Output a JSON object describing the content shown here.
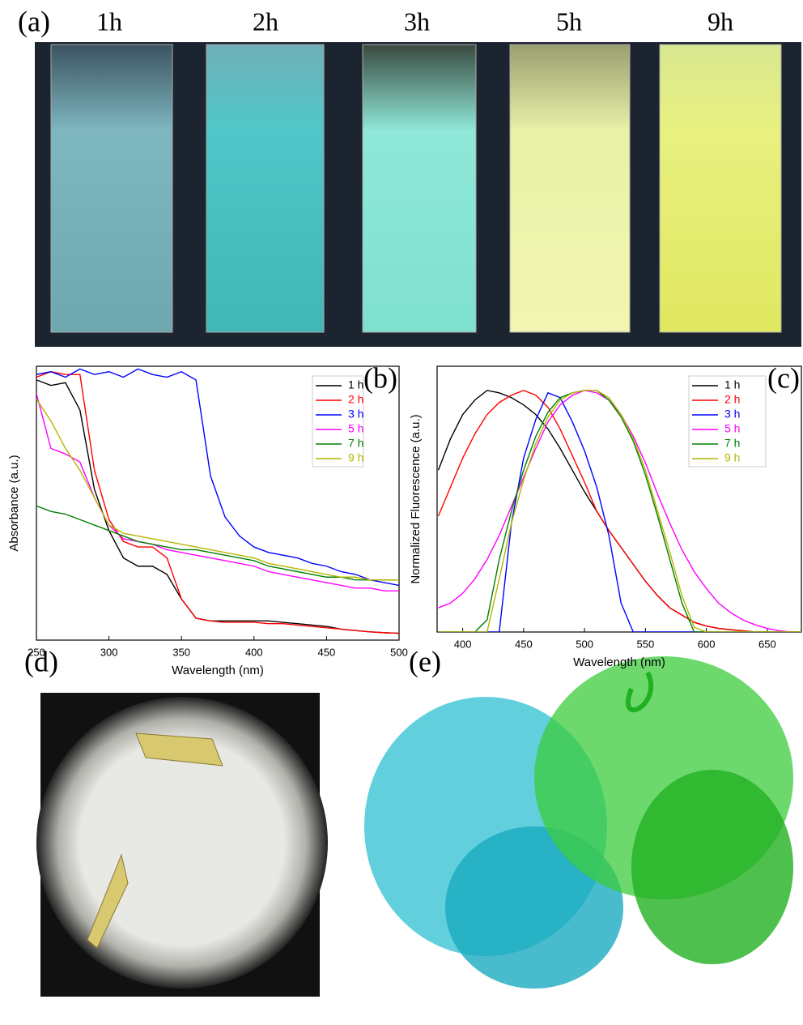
{
  "panel_labels": [
    "(a)",
    "(d)",
    "(e)"
  ],
  "photo_captions": [
    "1h",
    "2h",
    "3h",
    "5h",
    "9h"
  ],
  "chart_data": [
    {
      "type": "line",
      "panel_label": "(b)",
      "x_label": "Wavelength (nm)",
      "y_label": "Absorbance (a.u.)",
      "xlim": [
        250,
        500
      ],
      "ylim": [
        0,
        1
      ],
      "xticks": [
        250,
        300,
        350,
        400,
        450,
        500
      ],
      "legend": "upper right",
      "x": [
        250,
        260,
        270,
        280,
        290,
        300,
        310,
        320,
        330,
        340,
        350,
        360,
        370,
        380,
        390,
        400,
        410,
        420,
        430,
        440,
        450,
        460,
        470,
        480,
        490,
        500
      ],
      "series": [
        {
          "name": "1 h",
          "color": "#000000",
          "values": [
            0.95,
            0.93,
            0.94,
            0.84,
            0.55,
            0.4,
            0.3,
            0.27,
            0.27,
            0.24,
            0.15,
            0.08,
            0.07,
            0.07,
            0.07,
            0.07,
            0.07,
            0.065,
            0.06,
            0.055,
            0.05,
            0.04,
            0.035,
            0.03,
            0.027,
            0.025
          ]
        },
        {
          "name": "2 h",
          "color": "#ff0000",
          "values": [
            0.96,
            0.98,
            0.97,
            0.97,
            0.62,
            0.44,
            0.36,
            0.34,
            0.34,
            0.3,
            0.15,
            0.08,
            0.07,
            0.065,
            0.065,
            0.065,
            0.06,
            0.06,
            0.055,
            0.05,
            0.045,
            0.04,
            0.035,
            0.03,
            0.027,
            0.025
          ]
        },
        {
          "name": "3 h",
          "color": "#0000ff",
          "values": [
            0.97,
            0.98,
            0.96,
            0.99,
            0.97,
            0.98,
            0.96,
            0.99,
            0.97,
            0.96,
            0.98,
            0.95,
            0.6,
            0.45,
            0.38,
            0.34,
            0.32,
            0.31,
            0.3,
            0.28,
            0.27,
            0.25,
            0.24,
            0.22,
            0.21,
            0.2
          ]
        },
        {
          "name": "5 h",
          "color": "#ff00ff",
          "values": [
            0.9,
            0.7,
            0.68,
            0.65,
            0.52,
            0.42,
            0.37,
            0.36,
            0.35,
            0.33,
            0.32,
            0.31,
            0.3,
            0.29,
            0.28,
            0.27,
            0.25,
            0.24,
            0.23,
            0.22,
            0.21,
            0.2,
            0.19,
            0.19,
            0.18,
            0.18
          ]
        },
        {
          "name": "7 h",
          "color": "#008000",
          "values": [
            0.49,
            0.47,
            0.46,
            0.44,
            0.42,
            0.4,
            0.38,
            0.36,
            0.35,
            0.34,
            0.33,
            0.33,
            0.32,
            0.31,
            0.3,
            0.29,
            0.27,
            0.26,
            0.25,
            0.24,
            0.23,
            0.23,
            0.22,
            0.22,
            0.22,
            0.22
          ]
        },
        {
          "name": "9 h",
          "color": "#b5b500",
          "values": [
            0.88,
            0.8,
            0.7,
            0.62,
            0.52,
            0.42,
            0.39,
            0.38,
            0.37,
            0.36,
            0.35,
            0.34,
            0.33,
            0.32,
            0.31,
            0.3,
            0.28,
            0.27,
            0.26,
            0.25,
            0.24,
            0.23,
            0.23,
            0.22,
            0.22,
            0.22
          ]
        }
      ]
    },
    {
      "type": "line",
      "panel_label": "(c)",
      "x_label": "Wavelength (nm)",
      "y_label": "Normalized Fluorescence (a.u.)",
      "xlim": [
        379,
        678
      ],
      "ylim": [
        0,
        1.1
      ],
      "xticks": [
        400,
        450,
        500,
        550,
        600,
        650
      ],
      "legend": "upper right",
      "x": [
        380,
        390,
        400,
        410,
        420,
        430,
        440,
        450,
        460,
        470,
        480,
        490,
        500,
        510,
        520,
        530,
        540,
        550,
        560,
        570,
        580,
        590,
        600,
        610,
        620,
        630,
        640,
        650,
        660,
        670,
        680
      ],
      "series": [
        {
          "name": "1 h",
          "color": "#000000",
          "values": [
            0.67,
            0.8,
            0.9,
            0.96,
            1.0,
            0.99,
            0.97,
            0.94,
            0.9,
            0.84,
            0.76,
            0.67,
            0.58,
            0.5,
            0.42,
            0.35,
            0.28,
            0.21,
            0.15,
            0.1,
            0.07,
            0.04,
            0.025,
            0.015,
            0.01,
            0.005,
            0,
            0,
            0,
            0,
            0
          ]
        },
        {
          "name": "2 h",
          "color": "#ff0000",
          "values": [
            0.48,
            0.6,
            0.72,
            0.82,
            0.9,
            0.95,
            0.98,
            1.0,
            0.98,
            0.93,
            0.84,
            0.73,
            0.62,
            0.5,
            0.42,
            0.35,
            0.28,
            0.21,
            0.15,
            0.1,
            0.07,
            0.04,
            0.025,
            0.015,
            0.01,
            0.005,
            0,
            0,
            0,
            0,
            0
          ]
        },
        {
          "name": "3 h",
          "color": "#0000ff",
          "values": [
            0,
            0,
            0,
            0,
            0,
            0,
            0.45,
            0.72,
            0.88,
            0.99,
            0.97,
            0.87,
            0.75,
            0.6,
            0.4,
            0.12,
            0,
            0,
            0,
            0,
            0,
            0,
            0,
            0,
            0,
            0,
            0,
            0,
            0,
            0,
            0
          ]
        },
        {
          "name": "5 h",
          "color": "#ff00ff",
          "values": [
            0.1,
            0.12,
            0.16,
            0.22,
            0.3,
            0.4,
            0.52,
            0.64,
            0.76,
            0.87,
            0.94,
            0.98,
            1.0,
            0.99,
            0.96,
            0.9,
            0.81,
            0.7,
            0.57,
            0.45,
            0.34,
            0.25,
            0.18,
            0.12,
            0.08,
            0.05,
            0.03,
            0.015,
            0.005,
            0,
            0
          ]
        },
        {
          "name": "7 h",
          "color": "#008000",
          "values": [
            0,
            0,
            0,
            0,
            0.05,
            0.3,
            0.5,
            0.67,
            0.81,
            0.91,
            0.97,
            0.99,
            1.0,
            1.0,
            0.96,
            0.89,
            0.79,
            0.65,
            0.48,
            0.3,
            0.12,
            0,
            0,
            0,
            0,
            0,
            0,
            0,
            0,
            0,
            0
          ]
        },
        {
          "name": "9 h",
          "color": "#b5b500",
          "values": [
            0,
            0,
            0,
            0,
            0,
            0.22,
            0.45,
            0.63,
            0.78,
            0.89,
            0.96,
            0.99,
            1.0,
            1.0,
            0.97,
            0.9,
            0.8,
            0.67,
            0.5,
            0.33,
            0.15,
            0.02,
            0,
            0,
            0,
            0,
            0,
            0,
            0,
            0,
            0
          ]
        }
      ]
    }
  ]
}
